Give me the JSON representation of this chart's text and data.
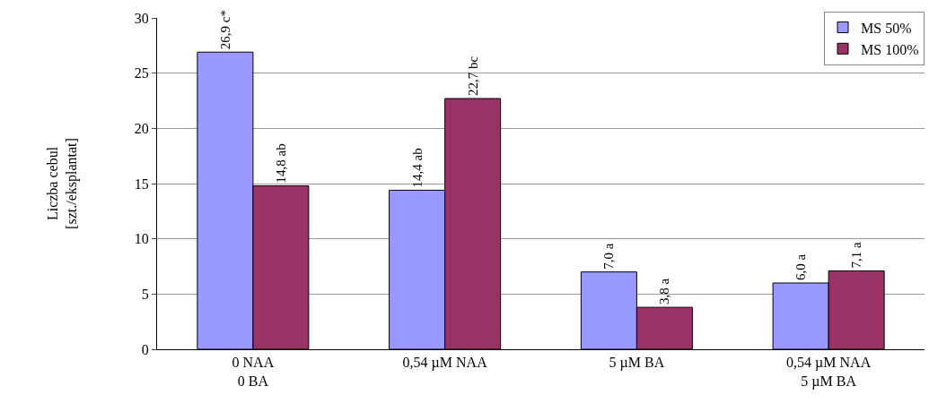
{
  "chart_data": {
    "type": "bar",
    "ylabel": "Liczba cebul\n[szt./eksplantat]",
    "categories": [
      "0 NAA\n0 BA",
      "0,54 µM NAA",
      "5 µM BA",
      "0,54 µM NAA\n5 µM BA"
    ],
    "series": [
      {
        "name": "MS 50%",
        "color": "#9999ff",
        "values": [
          26.9,
          14.4,
          7.0,
          6.0
        ],
        "value_labels": [
          "26,9 c*",
          "14,4 ab",
          "7,0 a",
          "6,0 a"
        ]
      },
      {
        "name": "MS 100%",
        "color": "#993366",
        "values": [
          14.8,
          22.7,
          3.8,
          7.1
        ],
        "value_labels": [
          "14,8 ab",
          "22,7 bc",
          "3,8 a",
          "7,1 a"
        ]
      }
    ],
    "ylim": [
      0,
      30
    ],
    "yticks": [
      0,
      5,
      10,
      15,
      20,
      25,
      30
    ],
    "grid": "y",
    "legend": "top right"
  }
}
